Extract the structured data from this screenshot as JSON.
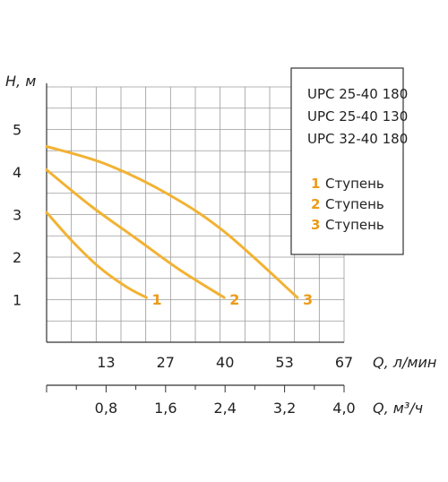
{
  "chart_data": {
    "type": "line",
    "ylabel": "H, м",
    "xlabel_primary": "Q, л/мин",
    "xlabel_secondary": "Q, м³/ч",
    "y_ticks": [
      "1",
      "2",
      "3",
      "4",
      "5"
    ],
    "x_ticks_primary": [
      "13",
      "27",
      "40",
      "53",
      "67"
    ],
    "x_ticks_secondary": [
      "0,8",
      "1,6",
      "2,4",
      "3,2",
      "4,0"
    ],
    "xlim": [
      0,
      67
    ],
    "ylim": [
      0,
      6
    ],
    "grid": true,
    "legend_position": "top-right",
    "models": [
      "UPC 25-40 180",
      "UPC 25-40 130",
      "UPC 32-40 180"
    ],
    "stages": [
      {
        "number": "1",
        "label": "Ступень"
      },
      {
        "number": "2",
        "label": "Ступень"
      },
      {
        "number": "3",
        "label": "Ступень"
      }
    ],
    "series": [
      {
        "name": "1",
        "x": [
          0,
          6,
          12,
          18,
          22.5
        ],
        "y": [
          3.05,
          2.35,
          1.75,
          1.3,
          1.05
        ]
      },
      {
        "name": "2",
        "x": [
          0,
          10,
          20,
          30,
          40
        ],
        "y": [
          4.05,
          3.2,
          2.45,
          1.7,
          1.05
        ]
      },
      {
        "name": "3",
        "x": [
          0,
          13,
          27,
          40,
          56.5
        ],
        "y": [
          4.6,
          4.2,
          3.5,
          2.6,
          1.05
        ]
      }
    ],
    "colors": {
      "curve": "#f2b233",
      "label": "#ec9b1a",
      "grid": "#9a9a9a",
      "axis": "#333333",
      "text": "#222222"
    }
  }
}
